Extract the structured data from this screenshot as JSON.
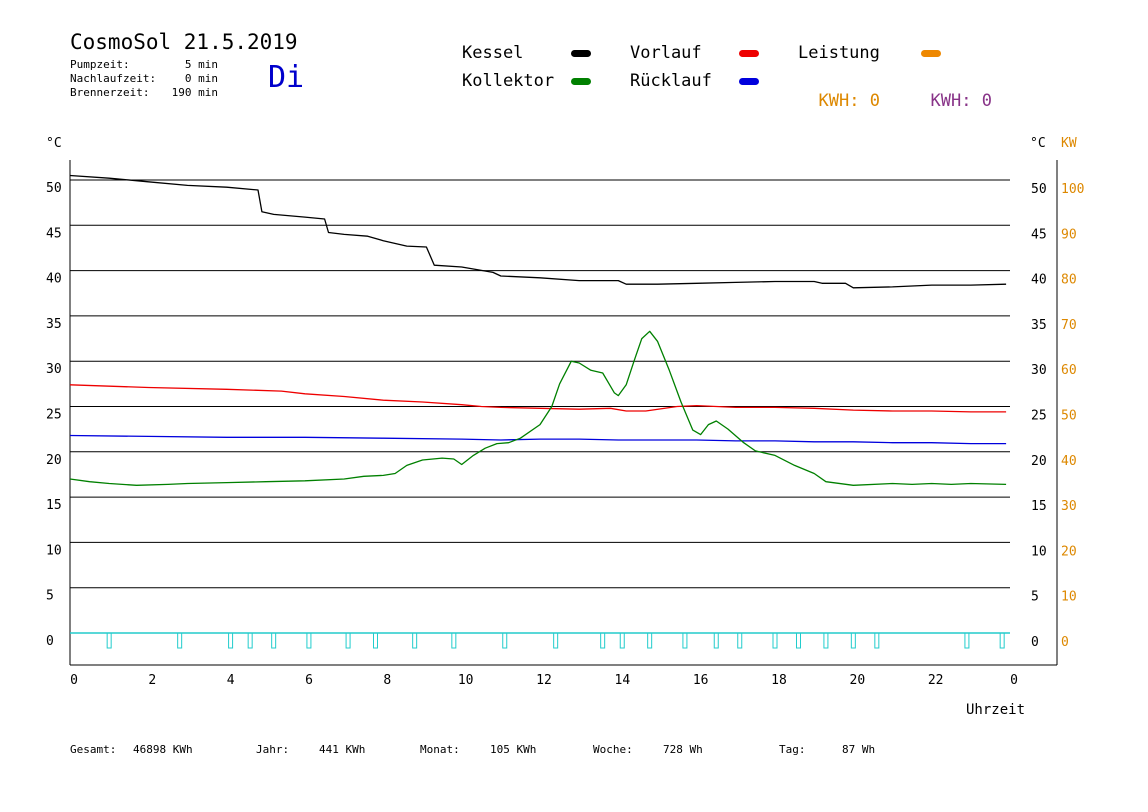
{
  "header": {
    "title": "CosmoSol 21.5.2019",
    "weekday": "Di",
    "info": [
      {
        "label": "Pumpzeit:",
        "value": "5 min"
      },
      {
        "label": "Nachlaufzeit:",
        "value": "0 min"
      },
      {
        "label": "Brennerzeit:",
        "value": "190 min"
      }
    ]
  },
  "legend": {
    "kessel": {
      "label": "Kessel",
      "color": "#000000"
    },
    "kollektor": {
      "label": "Kollektor",
      "color": "#008000"
    },
    "vorlauf": {
      "label": "Vorlauf",
      "color": "#ee0000"
    },
    "ruecklauf": {
      "label": "Rücklauf",
      "color": "#0000dd"
    },
    "leistung": {
      "label": "Leistung",
      "color": "#ee8800"
    },
    "kwh_orange": {
      "label": "KWH:",
      "value": "0",
      "color": "#dd8800"
    },
    "kwh_purple": {
      "label": "KWH:",
      "value": "0",
      "color": "#883388"
    }
  },
  "footer": {
    "gesamt": {
      "label": "Gesamt:",
      "value": "46898 KWh"
    },
    "jahr": {
      "label": "Jahr:",
      "value": "441 KWh"
    },
    "monat": {
      "label": "Monat:",
      "value": "105 KWh"
    },
    "woche": {
      "label": "Woche:",
      "value": "728 Wh"
    },
    "tag": {
      "label": "Tag:",
      "value": "87 Wh"
    }
  },
  "chart_data": {
    "type": "line",
    "left_axis_unit": "°C",
    "right_axis_unit_c": "°C",
    "right_axis_unit_kw": "KW",
    "xlabel": "Uhrzeit",
    "x_ticks": [
      "0",
      "2",
      "4",
      "6",
      "8",
      "10",
      "12",
      "14",
      "16",
      "18",
      "20",
      "22",
      "0"
    ],
    "ylim": [
      0,
      50
    ],
    "y_ticks": [
      0,
      5,
      10,
      15,
      20,
      25,
      30,
      35,
      40,
      45,
      50
    ],
    "kw_ticks": [
      0,
      10,
      20,
      30,
      40,
      50,
      60,
      70,
      80,
      90,
      100
    ],
    "grid": true,
    "series": [
      {
        "name": "Kessel",
        "color": "#000000",
        "points": [
          [
            0,
            50.5
          ],
          [
            1,
            50.2
          ],
          [
            2,
            49.8
          ],
          [
            3,
            49.4
          ],
          [
            4,
            49.2
          ],
          [
            4.8,
            48.9
          ],
          [
            4.9,
            46.5
          ],
          [
            5.2,
            46.2
          ],
          [
            6,
            45.9
          ],
          [
            6.5,
            45.7
          ],
          [
            6.6,
            44.2
          ],
          [
            7,
            44.0
          ],
          [
            7.6,
            43.8
          ],
          [
            8,
            43.3
          ],
          [
            8.6,
            42.7
          ],
          [
            9.1,
            42.6
          ],
          [
            9.3,
            40.6
          ],
          [
            10,
            40.4
          ],
          [
            10.8,
            39.8
          ],
          [
            11,
            39.4
          ],
          [
            12,
            39.2
          ],
          [
            13,
            38.9
          ],
          [
            14,
            38.9
          ],
          [
            14.2,
            38.5
          ],
          [
            15,
            38.5
          ],
          [
            16,
            38.6
          ],
          [
            17,
            38.7
          ],
          [
            18,
            38.8
          ],
          [
            19,
            38.8
          ],
          [
            19.2,
            38.6
          ],
          [
            19.8,
            38.6
          ],
          [
            20,
            38.1
          ],
          [
            21,
            38.2
          ],
          [
            22,
            38.4
          ],
          [
            23,
            38.4
          ],
          [
            23.9,
            38.5
          ]
        ]
      },
      {
        "name": "Vorlauf",
        "color": "#ee0000",
        "points": [
          [
            0,
            27.4
          ],
          [
            2,
            27.1
          ],
          [
            4,
            26.9
          ],
          [
            5.4,
            26.7
          ],
          [
            6,
            26.4
          ],
          [
            7,
            26.1
          ],
          [
            8,
            25.7
          ],
          [
            9,
            25.5
          ],
          [
            10,
            25.2
          ],
          [
            10.5,
            25.0
          ],
          [
            11,
            24.9
          ],
          [
            12,
            24.8
          ],
          [
            13,
            24.7
          ],
          [
            13.8,
            24.8
          ],
          [
            14.2,
            24.5
          ],
          [
            14.7,
            24.5
          ],
          [
            15.5,
            25.0
          ],
          [
            16,
            25.1
          ],
          [
            17,
            24.9
          ],
          [
            18,
            24.9
          ],
          [
            19,
            24.8
          ],
          [
            20,
            24.6
          ],
          [
            21,
            24.5
          ],
          [
            22,
            24.5
          ],
          [
            23,
            24.4
          ],
          [
            23.9,
            24.4
          ]
        ]
      },
      {
        "name": "Rücklauf",
        "color": "#0000dd",
        "points": [
          [
            0,
            21.8
          ],
          [
            2,
            21.7
          ],
          [
            4,
            21.6
          ],
          [
            6,
            21.6
          ],
          [
            8,
            21.5
          ],
          [
            10,
            21.4
          ],
          [
            11,
            21.3
          ],
          [
            12,
            21.4
          ],
          [
            13,
            21.4
          ],
          [
            14,
            21.3
          ],
          [
            15,
            21.3
          ],
          [
            16,
            21.3
          ],
          [
            17,
            21.2
          ],
          [
            18,
            21.2
          ],
          [
            19,
            21.1
          ],
          [
            20,
            21.1
          ],
          [
            21,
            21.0
          ],
          [
            22,
            21.0
          ],
          [
            23,
            20.9
          ],
          [
            23.9,
            20.9
          ]
        ]
      },
      {
        "name": "Kollektor",
        "color": "#008000",
        "points": [
          [
            0,
            17.0
          ],
          [
            0.5,
            16.7
          ],
          [
            1,
            16.5
          ],
          [
            1.7,
            16.3
          ],
          [
            2.5,
            16.4
          ],
          [
            3,
            16.5
          ],
          [
            4,
            16.6
          ],
          [
            5,
            16.7
          ],
          [
            6,
            16.8
          ],
          [
            7,
            17.0
          ],
          [
            7.5,
            17.3
          ],
          [
            8,
            17.4
          ],
          [
            8.3,
            17.6
          ],
          [
            8.6,
            18.5
          ],
          [
            9,
            19.1
          ],
          [
            9.5,
            19.3
          ],
          [
            9.8,
            19.2
          ],
          [
            10,
            18.6
          ],
          [
            10.3,
            19.6
          ],
          [
            10.6,
            20.4
          ],
          [
            10.9,
            20.9
          ],
          [
            11.2,
            21.0
          ],
          [
            11.5,
            21.5
          ],
          [
            12,
            23.0
          ],
          [
            12.3,
            25.0
          ],
          [
            12.5,
            27.5
          ],
          [
            12.8,
            30.0
          ],
          [
            13,
            29.8
          ],
          [
            13.3,
            29.0
          ],
          [
            13.6,
            28.7
          ],
          [
            13.9,
            26.5
          ],
          [
            14,
            26.2
          ],
          [
            14.2,
            27.4
          ],
          [
            14.4,
            30.0
          ],
          [
            14.6,
            32.5
          ],
          [
            14.8,
            33.3
          ],
          [
            15,
            32.2
          ],
          [
            15.3,
            29.0
          ],
          [
            15.6,
            25.5
          ],
          [
            15.9,
            22.4
          ],
          [
            16.1,
            21.9
          ],
          [
            16.3,
            23.0
          ],
          [
            16.5,
            23.4
          ],
          [
            16.8,
            22.5
          ],
          [
            17.2,
            21.0
          ],
          [
            17.5,
            20.1
          ],
          [
            18,
            19.6
          ],
          [
            18.5,
            18.5
          ],
          [
            19,
            17.6
          ],
          [
            19.3,
            16.7
          ],
          [
            20,
            16.3
          ],
          [
            21,
            16.5
          ],
          [
            21.5,
            16.4
          ],
          [
            22,
            16.5
          ],
          [
            22.5,
            16.4
          ],
          [
            23,
            16.5
          ],
          [
            23.9,
            16.4
          ]
        ]
      }
    ],
    "pump_pulses_x": [
      1.0,
      2.8,
      4.1,
      4.6,
      5.2,
      6.1,
      7.1,
      7.8,
      8.8,
      9.8,
      11.1,
      12.4,
      13.6,
      14.1,
      14.8,
      15.7,
      16.5,
      17.1,
      18.0,
      18.6,
      19.3,
      20.0,
      20.6,
      22.9,
      23.8
    ],
    "pump_pulse_color": "#22cccc"
  }
}
